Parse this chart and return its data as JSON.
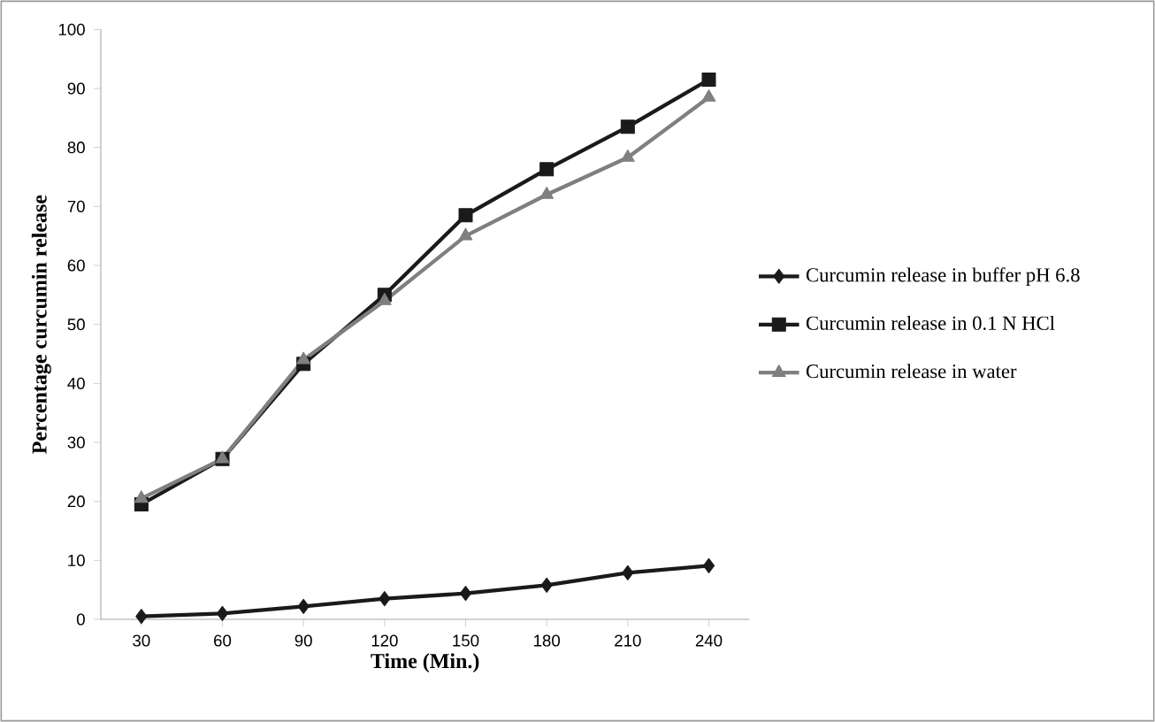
{
  "chart_data": {
    "type": "line",
    "xlabel": "Time (Min.)",
    "ylabel": "Percentage curcumin release",
    "categories": [
      "30",
      "60",
      "90",
      "120",
      "150",
      "180",
      "210",
      "240"
    ],
    "ylim": [
      0,
      100
    ],
    "yticks": [
      0,
      10,
      20,
      30,
      40,
      50,
      60,
      70,
      80,
      90,
      100
    ],
    "grid": false,
    "legend": "right",
    "series": [
      {
        "name": "Curcumin release in buffer pH 6.8",
        "color": "#1a1a1a",
        "marker": "diamond",
        "values": [
          0.5,
          1,
          2.2,
          3.5,
          4.4,
          5.8,
          7.9,
          9.1
        ]
      },
      {
        "name": "Curcumin release in 0.1 N HCl",
        "color": "#1a1a1a",
        "marker": "square",
        "values": [
          19.5,
          27.2,
          43.3,
          55,
          68.5,
          76.3,
          83.5,
          91.5
        ]
      },
      {
        "name": "Curcumin release in water",
        "color": "#7f7f7f",
        "marker": "triangle",
        "values": [
          20.5,
          27.2,
          44,
          54,
          65,
          72,
          78.3,
          88.5
        ]
      }
    ]
  }
}
